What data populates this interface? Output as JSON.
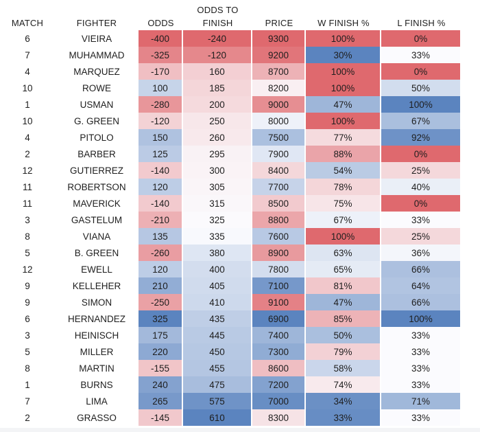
{
  "chart_data": {
    "type": "table",
    "title": "",
    "header": {
      "top_label": "ODDS TO",
      "columns": [
        "MATCH",
        "FIGHTER",
        "ODDS",
        "FINISH",
        "PRICE",
        "W FINISH %",
        "L FINISH %"
      ]
    },
    "columns_meta": [
      {
        "key": "match",
        "type": "plain"
      },
      {
        "key": "fighter",
        "type": "plain"
      },
      {
        "key": "odds",
        "type": "scale",
        "scale": "odds"
      },
      {
        "key": "finish",
        "type": "scale",
        "scale": "finish"
      },
      {
        "key": "price",
        "type": "scale",
        "scale": "price"
      },
      {
        "key": "w_finish",
        "type": "scale",
        "scale": "w_finish",
        "format": "percent"
      },
      {
        "key": "l_finish",
        "type": "scale",
        "scale": "l_finish",
        "format": "percent"
      }
    ],
    "rows": [
      [
        6,
        "VIEIRA",
        -400,
        -240,
        9300,
        100,
        0
      ],
      [
        7,
        "MUHAMMAD",
        -325,
        -120,
        9200,
        30,
        33
      ],
      [
        4,
        "MARQUEZ",
        -170,
        160,
        8700,
        100,
        0
      ],
      [
        10,
        "ROWE",
        100,
        185,
        8200,
        100,
        50
      ],
      [
        1,
        "USMAN",
        -280,
        200,
        9000,
        47,
        100
      ],
      [
        10,
        "G. GREEN",
        -120,
        250,
        8000,
        100,
        67
      ],
      [
        4,
        "PITOLO",
        150,
        260,
        7500,
        77,
        92
      ],
      [
        2,
        "BARBER",
        125,
        295,
        7900,
        88,
        0
      ],
      [
        12,
        "GUTIERREZ",
        -140,
        300,
        8400,
        54,
        25
      ],
      [
        11,
        "ROBERTSON",
        120,
        305,
        7700,
        78,
        40
      ],
      [
        11,
        "MAVERICK",
        -140,
        315,
        8500,
        75,
        0
      ],
      [
        3,
        "GASTELUM",
        -210,
        325,
        8800,
        67,
        33
      ],
      [
        8,
        "VIANA",
        135,
        335,
        7600,
        100,
        25
      ],
      [
        5,
        "B. GREEN",
        -260,
        380,
        8900,
        63,
        36
      ],
      [
        12,
        "EWELL",
        120,
        400,
        7800,
        65,
        66
      ],
      [
        9,
        "KELLEHER",
        210,
        405,
        7100,
        81,
        64
      ],
      [
        9,
        "SIMON",
        -250,
        410,
        9100,
        47,
        66
      ],
      [
        6,
        "HERNANDEZ",
        325,
        435,
        6900,
        85,
        100
      ],
      [
        3,
        "HEINISCH",
        175,
        445,
        7400,
        50,
        33
      ],
      [
        5,
        "MILLER",
        220,
        450,
        7300,
        79,
        33
      ],
      [
        8,
        "MARTIN",
        -155,
        455,
        8600,
        58,
        33
      ],
      [
        1,
        "BURNS",
        240,
        475,
        7200,
        74,
        33
      ],
      [
        7,
        "LIMA",
        265,
        575,
        7000,
        34,
        71
      ],
      [
        2,
        "GRASSO",
        -145,
        610,
        8300,
        33,
        33
      ]
    ],
    "color_scales": {
      "odds": {
        "min": -400,
        "mid": -10,
        "max": 325,
        "min_color": "#DF696E",
        "mid_color": "#FBFBFE",
        "max_color": "#5B84BF"
      },
      "finish": {
        "min": -240,
        "mid": 330,
        "max": 610,
        "min_color": "#DF696E",
        "mid_color": "#FBFBFE",
        "max_color": "#5B84BF"
      },
      "price": {
        "min": 6900,
        "mid": 8100,
        "max": 9300,
        "min_color": "#5B84BF",
        "mid_color": "#FBFBFE",
        "max_color": "#DF696E"
      },
      "w_finish": {
        "min": 30,
        "mid": 70.5,
        "max": 100,
        "min_color": "#5B84BF",
        "mid_color": "#FBFBFE",
        "max_color": "#DF696E"
      },
      "l_finish": {
        "min": 0,
        "mid": 33,
        "max": 100,
        "min_color": "#DF696E",
        "mid_color": "#FBFBFE",
        "max_color": "#5B84BF"
      }
    },
    "layout": {
      "text_color": "#1e1e1e",
      "background": "#ffffff"
    }
  }
}
